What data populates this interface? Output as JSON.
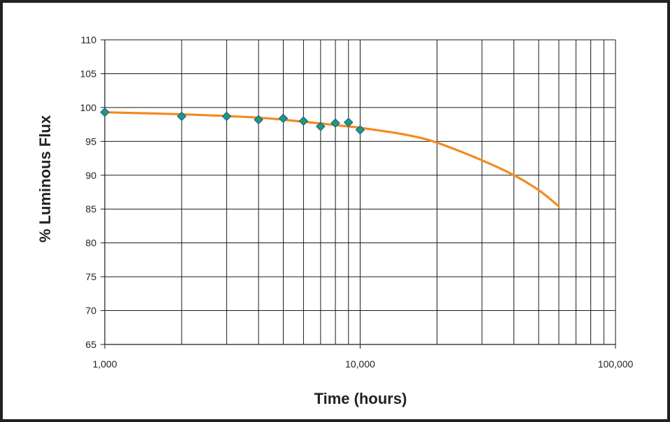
{
  "chart_data": {
    "type": "scatter",
    "title": "",
    "xlabel": "Time (hours)",
    "ylabel": "% Luminous Flux",
    "x_scale": "log",
    "xlim": [
      1000,
      100000
    ],
    "ylim": [
      65,
      110
    ],
    "grid": true,
    "legend": "none",
    "x_tick_labels": [
      "1,000",
      "10,000",
      "100,000"
    ],
    "x_ticks": [
      1000,
      10000,
      100000
    ],
    "y_ticks": [
      65,
      70,
      75,
      80,
      85,
      90,
      95,
      100,
      105,
      110
    ],
    "y_tick_labels": [
      "65",
      "70",
      "75",
      "80",
      "85",
      "90",
      "95",
      "100",
      "105",
      "110"
    ],
    "series": [
      {
        "kind": "markers",
        "marker": "diamond",
        "color": "#1a9e6e",
        "edge_color": "#2b5aa8",
        "points": [
          {
            "x": 1000,
            "y": 99.3
          },
          {
            "x": 2000,
            "y": 98.7
          },
          {
            "x": 3000,
            "y": 98.7
          },
          {
            "x": 4000,
            "y": 98.2
          },
          {
            "x": 5000,
            "y": 98.4
          },
          {
            "x": 6000,
            "y": 98.0
          },
          {
            "x": 7000,
            "y": 97.2
          },
          {
            "x": 8000,
            "y": 97.7
          },
          {
            "x": 9000,
            "y": 97.8
          },
          {
            "x": 10000,
            "y": 96.7
          }
        ]
      },
      {
        "kind": "line",
        "color": "#f28a1e",
        "points": [
          {
            "x": 1000,
            "y": 99.3
          },
          {
            "x": 2000,
            "y": 99.0
          },
          {
            "x": 4000,
            "y": 98.5
          },
          {
            "x": 6000,
            "y": 97.9
          },
          {
            "x": 8000,
            "y": 97.4
          },
          {
            "x": 10000,
            "y": 97.0
          },
          {
            "x": 15000,
            "y": 96.0
          },
          {
            "x": 20000,
            "y": 94.8
          },
          {
            "x": 30000,
            "y": 92.2
          },
          {
            "x": 40000,
            "y": 90.0
          },
          {
            "x": 50000,
            "y": 87.8
          },
          {
            "x": 60000,
            "y": 85.4
          }
        ]
      }
    ]
  }
}
